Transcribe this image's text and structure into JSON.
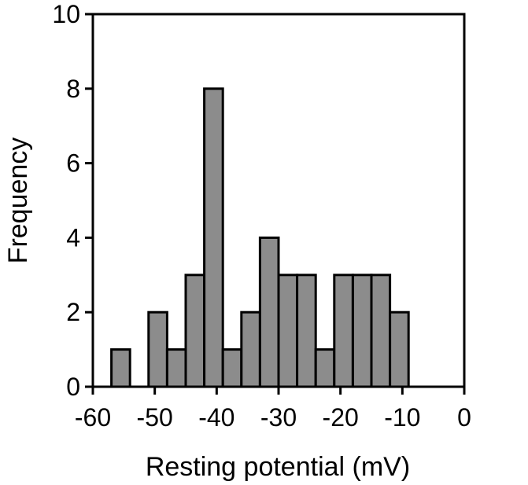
{
  "chart_data": {
    "type": "bar",
    "subtype": "histogram",
    "xlabel": "Resting potential (mV)",
    "ylabel": "Frequency",
    "xlim": [
      -60,
      0
    ],
    "ylim": [
      0,
      10
    ],
    "xticks": [
      -60,
      -50,
      -40,
      -30,
      -20,
      -10,
      0
    ],
    "yticks": [
      0,
      2,
      4,
      6,
      8,
      10
    ],
    "bin_width": 3,
    "bins": [
      {
        "x0": -57,
        "x1": -54,
        "value": 1
      },
      {
        "x0": -54,
        "x1": -51,
        "value": 0
      },
      {
        "x0": -51,
        "x1": -48,
        "value": 2
      },
      {
        "x0": -48,
        "x1": -45,
        "value": 1
      },
      {
        "x0": -45,
        "x1": -42,
        "value": 3
      },
      {
        "x0": -42,
        "x1": -39,
        "value": 8
      },
      {
        "x0": -39,
        "x1": -36,
        "value": 1
      },
      {
        "x0": -36,
        "x1": -33,
        "value": 2
      },
      {
        "x0": -33,
        "x1": -30,
        "value": 4
      },
      {
        "x0": -30,
        "x1": -27,
        "value": 3
      },
      {
        "x0": -27,
        "x1": -24,
        "value": 3
      },
      {
        "x0": -24,
        "x1": -21,
        "value": 1
      },
      {
        "x0": -21,
        "x1": -18,
        "value": 3
      },
      {
        "x0": -18,
        "x1": -15,
        "value": 3
      },
      {
        "x0": -15,
        "x1": -12,
        "value": 3
      },
      {
        "x0": -12,
        "x1": -9,
        "value": 2
      }
    ],
    "bar_color": "#8c8c8c",
    "edge_color": "#000000",
    "grid": false,
    "legend": "none"
  }
}
